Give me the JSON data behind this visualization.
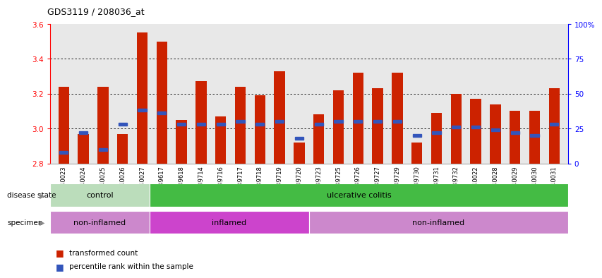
{
  "title": "GDS3119 / 208036_at",
  "samples": [
    "GSM240023",
    "GSM240024",
    "GSM240025",
    "GSM240026",
    "GSM240027",
    "GSM239617",
    "GSM239618",
    "GSM239714",
    "GSM239716",
    "GSM239717",
    "GSM239718",
    "GSM239719",
    "GSM239720",
    "GSM239723",
    "GSM239725",
    "GSM239726",
    "GSM239727",
    "GSM239729",
    "GSM239730",
    "GSM239731",
    "GSM239732",
    "GSM240022",
    "GSM240028",
    "GSM240029",
    "GSM240030",
    "GSM240031"
  ],
  "transformed_count": [
    3.24,
    2.97,
    3.24,
    2.97,
    3.55,
    3.5,
    3.05,
    3.27,
    3.07,
    3.24,
    3.19,
    3.33,
    2.92,
    3.08,
    3.22,
    3.32,
    3.23,
    3.32,
    2.92,
    3.09,
    3.2,
    3.17,
    3.14,
    3.1,
    3.1,
    3.23
  ],
  "percentile_rank": [
    8,
    22,
    10,
    28,
    38,
    36,
    28,
    28,
    28,
    30,
    28,
    30,
    18,
    28,
    30,
    30,
    30,
    30,
    20,
    22,
    26,
    26,
    24,
    22,
    20,
    28
  ],
  "ymin": 2.8,
  "ymax": 3.6,
  "yticks": [
    2.8,
    3.0,
    3.2,
    3.4,
    3.6
  ],
  "right_yticks": [
    0,
    25,
    50,
    75,
    100
  ],
  "right_yticklabels": [
    "0",
    "25",
    "50",
    "75",
    "100%"
  ],
  "bar_color": "#cc2200",
  "blue_color": "#3355bb",
  "disease_state_groups": [
    {
      "label": "control",
      "start": 0,
      "end": 5,
      "color": "#bbddbb"
    },
    {
      "label": "ulcerative colitis",
      "start": 5,
      "end": 26,
      "color": "#44bb44"
    }
  ],
  "specimen_groups": [
    {
      "label": "non-inflamed",
      "start": 0,
      "end": 5,
      "color": "#cc88cc"
    },
    {
      "label": "inflamed",
      "start": 5,
      "end": 13,
      "color": "#cc44cc"
    },
    {
      "label": "non-inflamed",
      "start": 13,
      "end": 26,
      "color": "#cc88cc"
    }
  ],
  "plot_bg": "#ffffff",
  "axes_bg": "#e8e8e8"
}
